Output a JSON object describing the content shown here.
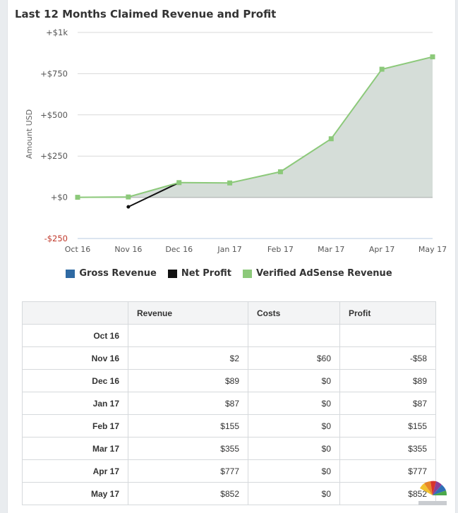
{
  "chart_data": {
    "type": "line",
    "title": "Last 12 Months Claimed Revenue and Profit",
    "ylabel": "Amount USD",
    "categories": [
      "Oct 16",
      "Nov 16",
      "Dec 16",
      "Jan 17",
      "Feb 17",
      "Mar 17",
      "Apr 17",
      "May 17"
    ],
    "y_ticks": [
      "+$1k",
      "+$750",
      "+$500",
      "+$250",
      "+$0",
      "-$250"
    ],
    "y_tick_values": [
      1000,
      750,
      500,
      250,
      0,
      -250
    ],
    "ylim": [
      -250,
      1000
    ],
    "grid": true,
    "legend_position": "bottom",
    "series": [
      {
        "name": "Gross Revenue",
        "color": "#2f6aa3",
        "values": [
          null,
          2,
          89,
          87,
          155,
          355,
          777,
          852
        ],
        "visible": false
      },
      {
        "name": "Net Profit",
        "color": "#111111",
        "values": [
          null,
          -58,
          89,
          87,
          155,
          355,
          777,
          852
        ]
      },
      {
        "name": "Verified AdSense Revenue",
        "color": "#8cc97a",
        "values": [
          0,
          2,
          89,
          87,
          155,
          355,
          777,
          852
        ]
      }
    ],
    "area_color": "#d5ddd8"
  },
  "table": {
    "columns": [
      "",
      "Revenue",
      "Costs",
      "Profit"
    ],
    "rows": [
      {
        "month": "Oct 16",
        "revenue": "",
        "costs": "",
        "profit": ""
      },
      {
        "month": "Nov 16",
        "revenue": "$2",
        "costs": "$60",
        "profit": "-$58"
      },
      {
        "month": "Dec 16",
        "revenue": "$89",
        "costs": "$0",
        "profit": "$89"
      },
      {
        "month": "Jan 17",
        "revenue": "$87",
        "costs": "$0",
        "profit": "$87"
      },
      {
        "month": "Feb 17",
        "revenue": "$155",
        "costs": "$0",
        "profit": "$155"
      },
      {
        "month": "Mar 17",
        "revenue": "$355",
        "costs": "$0",
        "profit": "$355"
      },
      {
        "month": "Apr 17",
        "revenue": "$777",
        "costs": "$0",
        "profit": "$777"
      },
      {
        "month": "May 17",
        "revenue": "$852",
        "costs": "$0",
        "profit": "$852"
      }
    ]
  },
  "icons": {
    "watermark": "peacock-logo"
  }
}
